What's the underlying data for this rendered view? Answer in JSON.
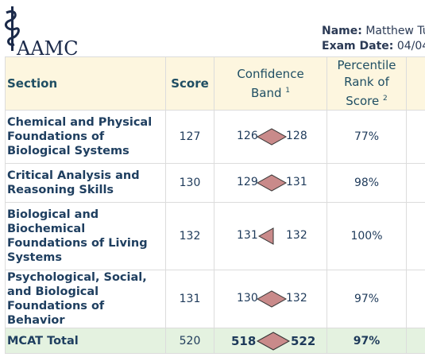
{
  "logo": {
    "text": "AAMC"
  },
  "examinee": {
    "name_label": "Name:",
    "name_value": "Matthew Tu",
    "date_label": "Exam Date:",
    "date_value": "04/04"
  },
  "table": {
    "headers": {
      "section": "Section",
      "score": "Score",
      "confidence_line1": "Confidence",
      "confidence_line2": "Band",
      "confidence_note": "1",
      "percentile_line1": "Percentile",
      "percentile_line2": "Rank of",
      "percentile_line3": "Score",
      "percentile_note": "2"
    },
    "rows": [
      {
        "section": "Chemical and Physical Foundations of Biological Systems",
        "score": "127",
        "band_low": "126",
        "band_high": "128",
        "percentile": "77%"
      },
      {
        "section": "Critical Analysis and Reasoning Skills",
        "score": "130",
        "band_low": "129",
        "band_high": "131",
        "percentile": "98%"
      },
      {
        "section": "Biological and Biochemical Foundations of Living Systems",
        "score": "132",
        "band_low": "131",
        "band_high": "132",
        "percentile": "100%"
      },
      {
        "section": "Psychological, Social, and Biological Foundations of Behavior",
        "score": "131",
        "band_low": "130",
        "band_high": "132",
        "percentile": "97%"
      }
    ],
    "total": {
      "section": "MCAT Total",
      "score": "520",
      "band_low": "518",
      "band_high": "522",
      "percentile": "97%"
    }
  },
  "colors": {
    "header_bg": "#fdf6df",
    "total_bg": "#e4f2e0",
    "band_fill": "#c98a8a"
  }
}
